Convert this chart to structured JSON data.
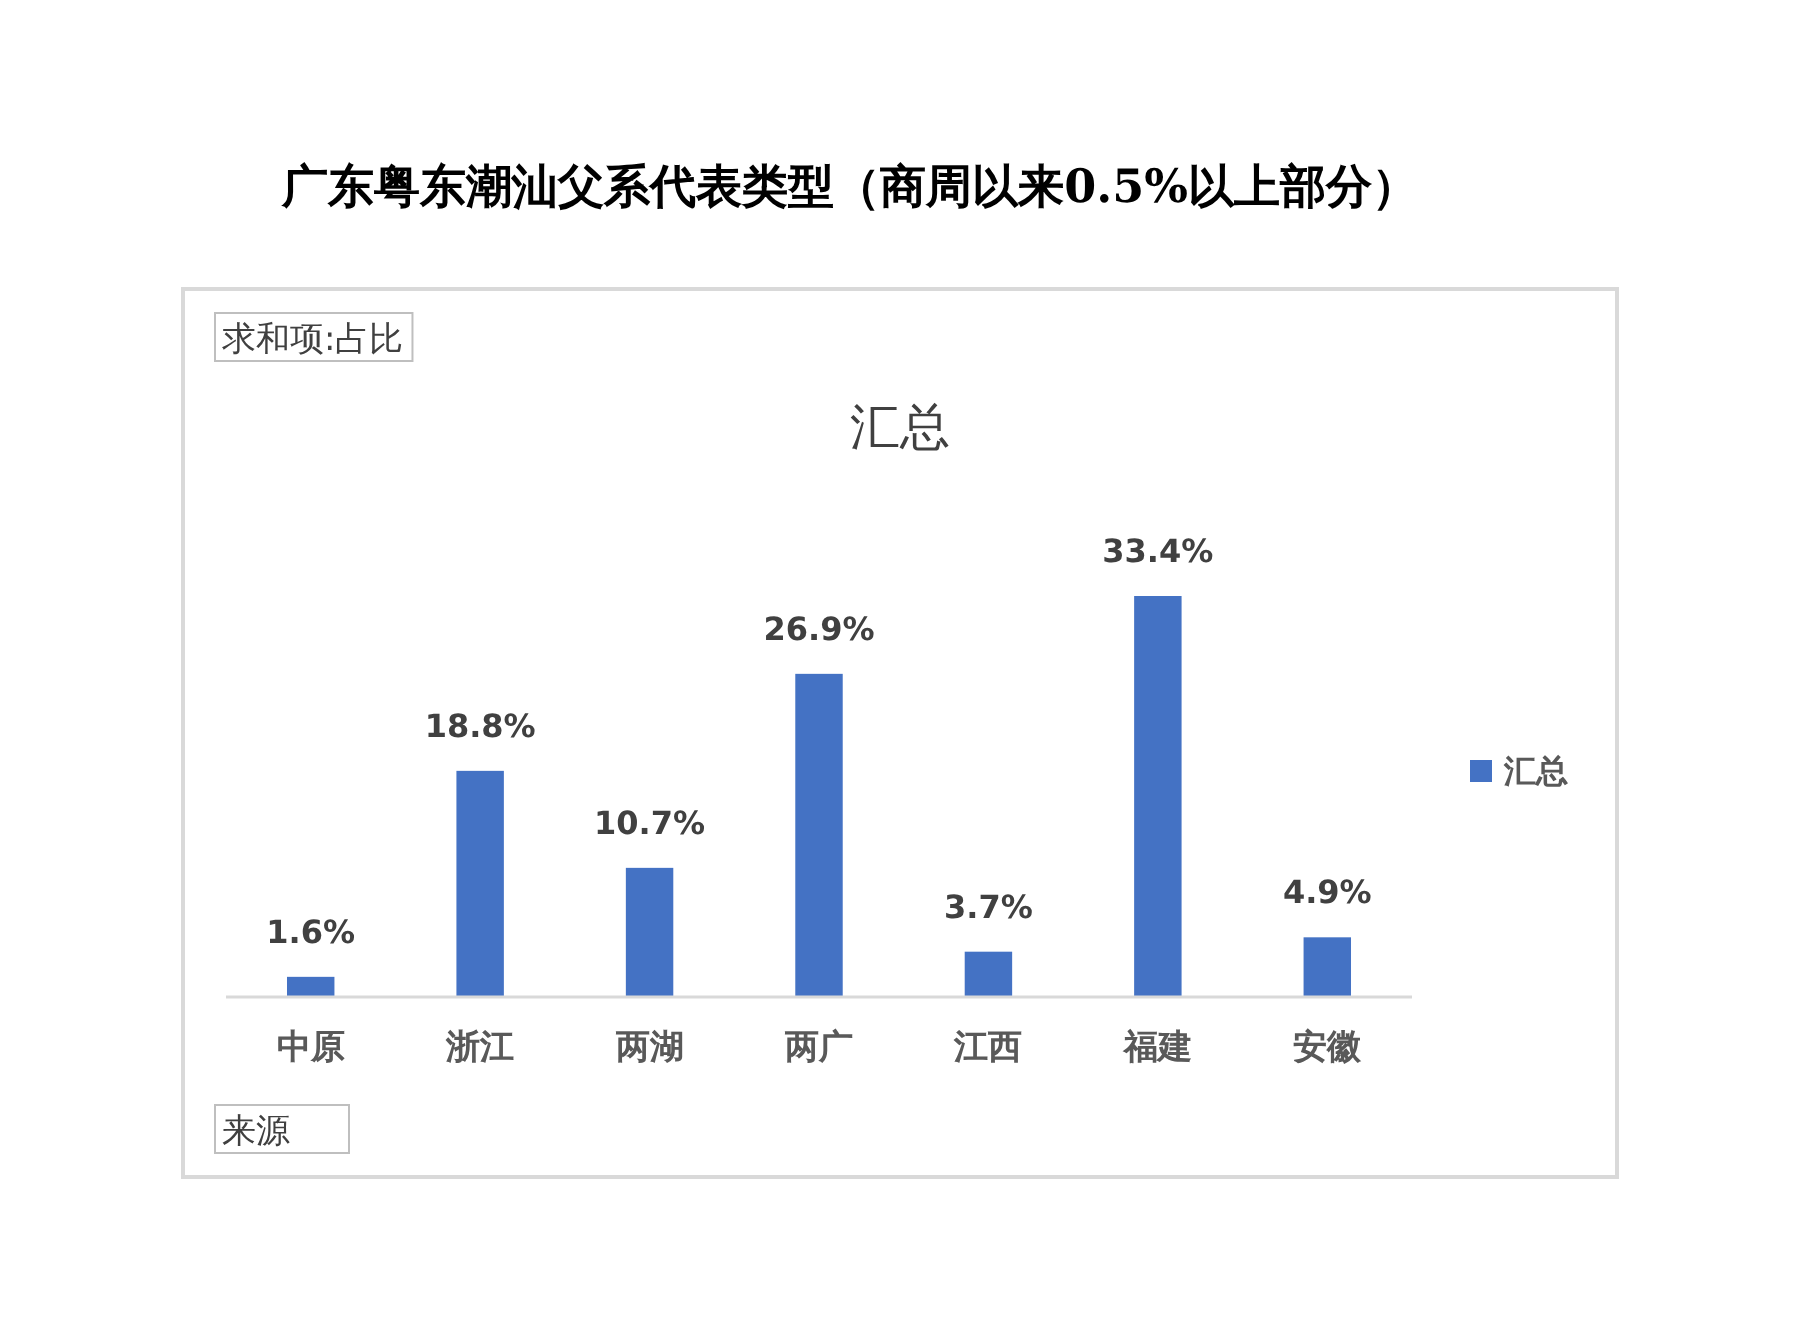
{
  "chart_data": {
    "type": "bar",
    "title": "广东粤东潮汕父系代表类型（商周以来0.5%以上部分）",
    "subtitle": "汇总",
    "categories": [
      "中原",
      "浙江",
      "两湖",
      "两广",
      "江西",
      "福建",
      "安徽"
    ],
    "series": [
      {
        "name": "汇总",
        "color": "#4472c4",
        "values": [
          1.6,
          18.8,
          10.7,
          26.9,
          3.7,
          33.4,
          4.9
        ],
        "value_labels": [
          "1.6%",
          "18.8%",
          "10.7%",
          "26.9%",
          "3.7%",
          "33.4%",
          "4.9%"
        ]
      }
    ],
    "legend": "right",
    "annotations": [
      "求和项:占比",
      "来源"
    ]
  }
}
